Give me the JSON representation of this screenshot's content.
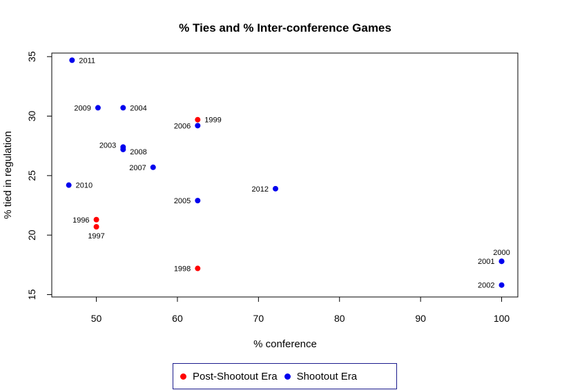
{
  "chart_data": {
    "type": "scatter",
    "title": "% Ties and % Inter-conference Games",
    "xlabel": "% conference",
    "ylabel": "% tied in regulation",
    "xlim": [
      44.5,
      102
    ],
    "ylim": [
      14.8,
      35.3
    ],
    "xticks": [
      50,
      60,
      70,
      80,
      90,
      100
    ],
    "yticks": [
      15,
      20,
      25,
      30,
      35
    ],
    "grid": false,
    "legend_position": "bottom",
    "series": [
      {
        "name": "Post-Shootout Era",
        "color": "#ff0000",
        "points": [
          {
            "x": 62.5,
            "y": 29.7,
            "label": "1999"
          },
          {
            "x": 50.0,
            "y": 21.3,
            "label": "1996"
          },
          {
            "x": 50.0,
            "y": 20.7,
            "label": "1997"
          },
          {
            "x": 62.5,
            "y": 17.2,
            "label": "1998"
          }
        ]
      },
      {
        "name": "Shootout Era",
        "color": "#0000ee",
        "points": [
          {
            "x": 47.0,
            "y": 34.7,
            "label": "2011"
          },
          {
            "x": 50.2,
            "y": 30.7,
            "label": "2009"
          },
          {
            "x": 53.3,
            "y": 30.7,
            "label": "2004"
          },
          {
            "x": 62.5,
            "y": 29.2,
            "label": "2006"
          },
          {
            "x": 53.3,
            "y": 27.4,
            "label": "2003"
          },
          {
            "x": 53.3,
            "y": 27.2,
            "label": "2008"
          },
          {
            "x": 57.0,
            "y": 25.7,
            "label": "2007"
          },
          {
            "x": 46.6,
            "y": 24.2,
            "label": "2010"
          },
          {
            "x": 72.1,
            "y": 23.9,
            "label": "2012"
          },
          {
            "x": 62.5,
            "y": 22.9,
            "label": "2005"
          },
          {
            "x": 100.0,
            "y": 17.8,
            "label": "2000"
          },
          {
            "x": 100.0,
            "y": 17.8,
            "label": "2001"
          },
          {
            "x": 100.0,
            "y": 15.8,
            "label": "2002"
          }
        ]
      }
    ]
  }
}
